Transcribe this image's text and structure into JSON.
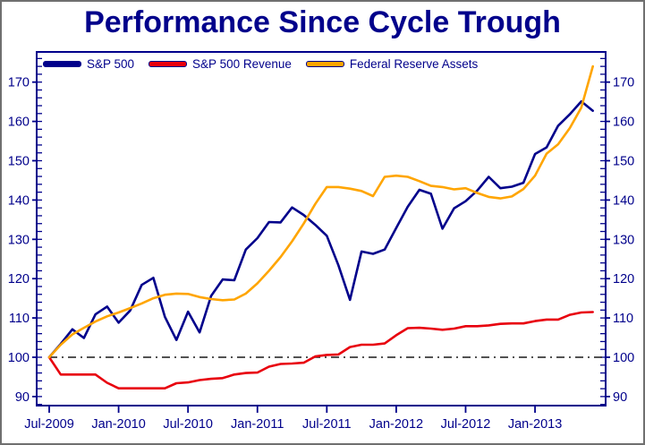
{
  "window": {
    "title": "Performance Since Cycle Trough"
  },
  "chart_data": {
    "type": "line",
    "title": "Performance Since Cycle Trough",
    "x_axis": {
      "range": [
        "Jul-2009",
        "Jun-2013"
      ],
      "frequency": "monthly",
      "ticks": [
        {
          "label": "Jul-2009",
          "month": 0
        },
        {
          "label": "Jan-2010",
          "month": 6
        },
        {
          "label": "Jul-2010",
          "month": 12
        },
        {
          "label": "Jan-2011",
          "month": 18
        },
        {
          "label": "Jul-2011",
          "month": 24
        },
        {
          "label": "Jan-2012",
          "month": 30
        },
        {
          "label": "Jul-2012",
          "month": 36
        },
        {
          "label": "Jan-2013",
          "month": 42
        }
      ]
    },
    "y_axis": {
      "sides": "both",
      "major_ticks": [
        90,
        100,
        110,
        120,
        130,
        140,
        150,
        160,
        170
      ],
      "minor_step": 2,
      "minor_min": 88,
      "minor_max": 176,
      "ylim": [
        87.5,
        177.5
      ]
    },
    "reference_line": {
      "value": 100,
      "style": "dash-dot",
      "color": "#1a1a1a"
    },
    "legend": {
      "position": "top-left-inside"
    },
    "series": [
      {
        "name": "S&P 500",
        "color": "#00008B",
        "values": [
          100,
          103.4,
          107.1,
          104.9,
          110.9,
          112.9,
          108.8,
          111.9,
          118.4,
          120.2,
          110.3,
          104.4,
          111.6,
          106.3,
          115.6,
          119.8,
          119.6,
          127.4,
          130.3,
          134.4,
          134.3,
          138.1,
          136.2,
          133.7,
          130.9,
          123.4,
          114.6,
          126.9,
          126.3,
          127.4,
          132.9,
          138.3,
          142.6,
          141.6,
          132.7,
          137.9,
          139.7,
          142.4,
          145.9,
          143.0,
          143.4,
          144.4,
          151.7,
          153.4,
          158.9,
          161.8,
          165.1,
          162.7
        ]
      },
      {
        "name": "S&P 500 Revenue",
        "color": "#E8000D",
        "values": [
          100,
          95.6,
          95.6,
          95.6,
          95.6,
          93.5,
          92.1,
          92.1,
          92.1,
          92.1,
          92.1,
          93.4,
          93.6,
          94.2,
          94.5,
          94.7,
          95.6,
          96.0,
          96.1,
          97.6,
          98.3,
          98.4,
          98.6,
          100.2,
          100.6,
          100.7,
          102.6,
          103.2,
          103.2,
          103.5,
          105.6,
          107.4,
          107.5,
          107.3,
          107.0,
          107.3,
          107.9,
          107.9,
          108.1,
          108.5,
          108.6,
          108.6,
          109.2,
          109.6,
          109.6,
          110.8,
          111.4,
          111.5
        ]
      },
      {
        "name": "Federal Reserve Assets",
        "color": "#FFA500",
        "values": [
          100,
          103.2,
          105.8,
          107.5,
          109.1,
          110.4,
          111.4,
          112.5,
          113.7,
          115.0,
          115.9,
          116.2,
          116.1,
          115.3,
          114.8,
          114.5,
          114.7,
          116.2,
          118.8,
          122.0,
          125.5,
          129.5,
          134.0,
          139.0,
          143.3,
          143.3,
          142.9,
          142.3,
          141.0,
          145.9,
          146.2,
          145.9,
          144.8,
          143.6,
          143.3,
          142.7,
          143.0,
          141.8,
          140.8,
          140.4,
          140.9,
          142.8,
          146.2,
          151.8,
          154.2,
          158.3,
          163.5,
          174.0
        ]
      }
    ]
  },
  "colors": {
    "axis": "#00008B",
    "tick_text": "#00008B",
    "title_text": "#00008B",
    "frame_border": "#6f6f6f",
    "background": "#FFFFFF"
  }
}
